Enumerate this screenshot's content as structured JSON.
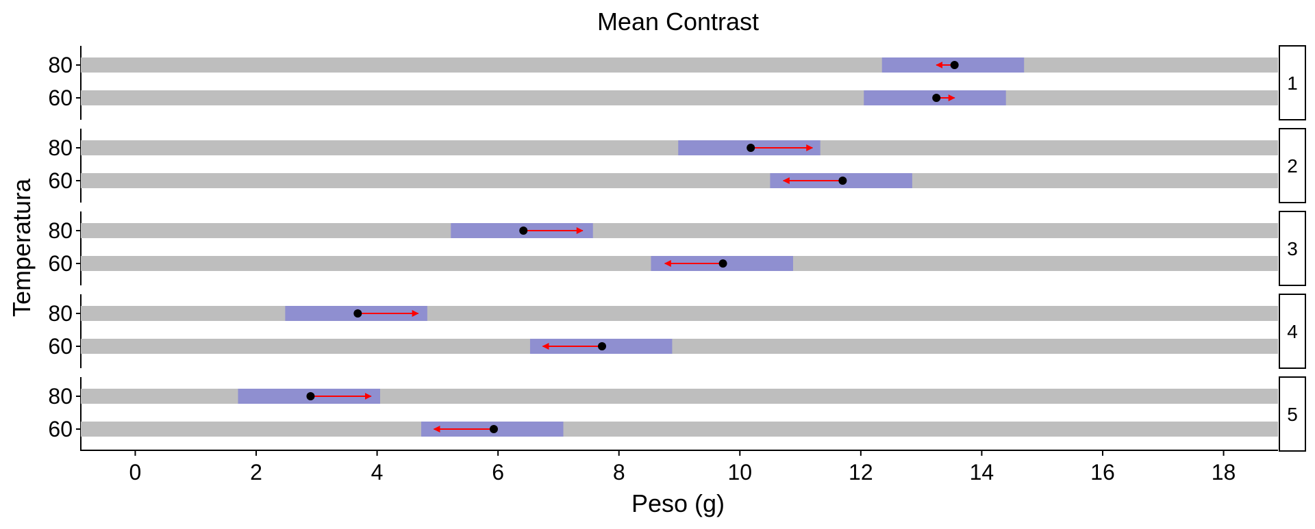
{
  "chart_data": {
    "type": "interval",
    "title": "Mean Contrast",
    "xlabel": "Peso (g)",
    "ylabel": "Temperatura",
    "xlim": [
      -0.9,
      18.9
    ],
    "x_ticks": [
      0,
      2,
      4,
      6,
      8,
      10,
      12,
      14,
      16,
      18
    ],
    "y_categories": [
      "80",
      "60"
    ],
    "facets": [
      {
        "label": "1",
        "rows": [
          {
            "level": "80",
            "ci": [
              12.35,
              14.7
            ],
            "point": 13.55,
            "arrow_end": 13.25
          },
          {
            "level": "60",
            "ci": [
              12.05,
              14.4
            ],
            "point": 13.25,
            "arrow_end": 13.55
          }
        ]
      },
      {
        "label": "2",
        "rows": [
          {
            "level": "80",
            "ci": [
              8.98,
              11.33
            ],
            "point": 10.18,
            "arrow_end": 11.2
          },
          {
            "level": "60",
            "ci": [
              10.5,
              12.85
            ],
            "point": 11.7,
            "arrow_end": 10.72
          }
        ]
      },
      {
        "label": "3",
        "rows": [
          {
            "level": "80",
            "ci": [
              5.22,
              7.57
            ],
            "point": 6.42,
            "arrow_end": 7.4
          },
          {
            "level": "60",
            "ci": [
              8.53,
              10.88
            ],
            "point": 9.72,
            "arrow_end": 8.76
          }
        ]
      },
      {
        "label": "4",
        "rows": [
          {
            "level": "80",
            "ci": [
              2.48,
              4.83
            ],
            "point": 3.68,
            "arrow_end": 4.68
          },
          {
            "level": "60",
            "ci": [
              6.53,
              8.88
            ],
            "point": 7.72,
            "arrow_end": 6.74
          }
        ]
      },
      {
        "label": "5",
        "rows": [
          {
            "level": "80",
            "ci": [
              1.7,
              4.05
            ],
            "point": 2.9,
            "arrow_end": 3.9
          },
          {
            "level": "60",
            "ci": [
              4.73,
              7.08
            ],
            "point": 5.93,
            "arrow_end": 4.94
          }
        ]
      }
    ],
    "colors": {
      "track": "#bebebe",
      "ci": "#8f8fd0",
      "point": "#000000",
      "arrow": "#ff0000"
    }
  }
}
